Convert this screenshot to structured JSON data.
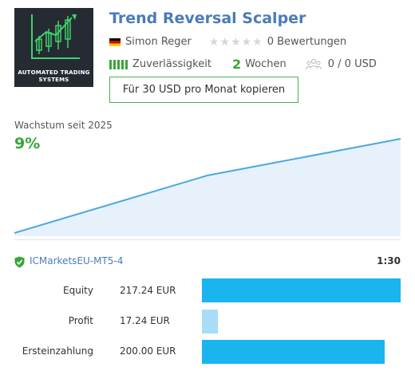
{
  "logo": {
    "text_line1": "AUTOMATED TRADING",
    "text_line2": "SYSTEMS",
    "accent_color": "#3fd46b"
  },
  "product": {
    "title": "Trend Reversal Scalper",
    "author": "Simon Reger",
    "flag": "germany-flag",
    "rating_stars": 0,
    "reviews_text": "0 Bewertungen",
    "reliability_label": "Zuverlässigkeit",
    "weeks_number": "2",
    "weeks_label": "Wochen",
    "subscribers_text": "0 / 0 USD",
    "copy_button_label": "Für 30 USD pro Monat kopieren"
  },
  "growth": {
    "label": "Wachstum seit 2025",
    "value": "9%"
  },
  "chart_data": {
    "type": "area",
    "x": [
      0,
      1,
      2
    ],
    "y": [
      0,
      5.5,
      9
    ],
    "ylim": [
      0,
      9
    ],
    "color": "#4aa8e0",
    "fill_color": "#e6f1fb"
  },
  "broker": {
    "name": "ICMarketsEU-MT5-4",
    "time": "1:30",
    "verified_icon": "shield-check-icon"
  },
  "stats": [
    {
      "label": "Equity",
      "value": "217.24 EUR",
      "amount": 217.24,
      "color": "#1ab4ef"
    },
    {
      "label": "Profit",
      "value": "17.24 EUR",
      "amount": 17.24,
      "color": "#a8dcf8"
    },
    {
      "label": "Ersteinzahlung",
      "value": "200.00 EUR",
      "amount": 200.0,
      "color": "#1ab4ef"
    }
  ]
}
